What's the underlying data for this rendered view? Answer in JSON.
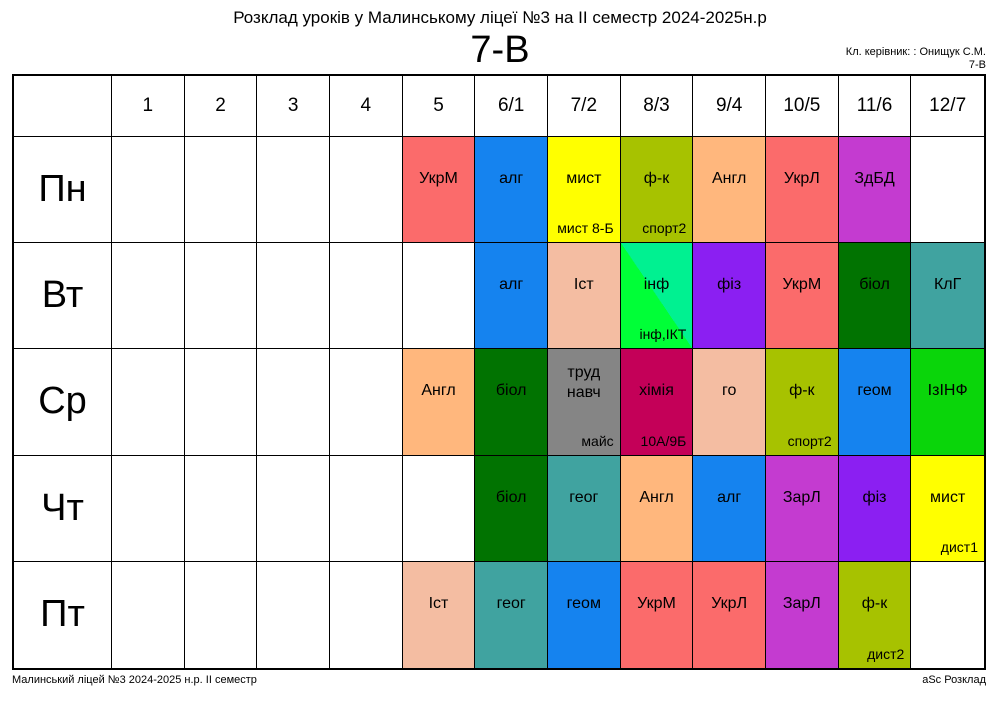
{
  "title": "Розклад уроків у Малинському ліцеї №3 на ІІ семестр 2024-2025н.р",
  "class_name": "7-В",
  "teacher_line1": "Кл. керівник: : Онищук С.М.",
  "teacher_line2": "7-В",
  "periods": [
    "1",
    "2",
    "3",
    "4",
    "5",
    "6/1",
    "7/2",
    "8/3",
    "9/4",
    "10/5",
    "11/6",
    "12/7"
  ],
  "days": [
    {
      "name": "Пн",
      "lessons": [
        null,
        null,
        null,
        null,
        {
          "subject": "УкрМ",
          "color": "#fb6b6b"
        },
        {
          "subject": "алг",
          "color": "#1583ef"
        },
        {
          "subject": "мист",
          "note": "мист 8-Б",
          "color": "#ffff00"
        },
        {
          "subject": "ф-к",
          "note": "спорт2",
          "color": "#a7c200"
        },
        {
          "subject": "Англ",
          "color": "#ffb77d"
        },
        {
          "subject": "УкрЛ",
          "color": "#fb6b6b"
        },
        {
          "subject": "ЗдБД",
          "color": "#c43bd0"
        },
        null
      ]
    },
    {
      "name": "Вт",
      "lessons": [
        null,
        null,
        null,
        null,
        null,
        {
          "subject": "алг",
          "color": "#1583ef"
        },
        {
          "subject": "Іст",
          "color": "#f4bda2"
        },
        {
          "subject": "інф",
          "note": "інф,ІКТ",
          "color": "#00ff37",
          "color2": "#00f191"
        },
        {
          "subject": "фіз",
          "color": "#8b1ff2"
        },
        {
          "subject": "УкрМ",
          "color": "#fb6b6b"
        },
        {
          "subject": "біол",
          "color": "#017301"
        },
        {
          "subject": "КлГ",
          "color": "#40a3a0"
        }
      ]
    },
    {
      "name": "Ср",
      "lessons": [
        null,
        null,
        null,
        null,
        {
          "subject": "Англ",
          "color": "#ffb77d"
        },
        {
          "subject": "біол",
          "color": "#017301"
        },
        {
          "subject": "труд навч",
          "note": "майс",
          "color": "#858585",
          "multi": true
        },
        {
          "subject": "хімія",
          "note": "10А/9Б",
          "color": "#c40058"
        },
        {
          "subject": "го",
          "color": "#f4bda2"
        },
        {
          "subject": "ф-к",
          "note": "спорт2",
          "color": "#a7c200"
        },
        {
          "subject": "геом",
          "color": "#1583ef"
        },
        {
          "subject": "ІзІНФ",
          "color": "#0ad50a"
        }
      ]
    },
    {
      "name": "Чт",
      "lessons": [
        null,
        null,
        null,
        null,
        null,
        {
          "subject": "біол",
          "color": "#017301"
        },
        {
          "subject": "геог",
          "color": "#40a3a0"
        },
        {
          "subject": "Англ",
          "color": "#ffb77d"
        },
        {
          "subject": "алг",
          "color": "#1583ef"
        },
        {
          "subject": "ЗарЛ",
          "color": "#c43bd0"
        },
        {
          "subject": "фіз",
          "color": "#8b1ff2"
        },
        {
          "subject": "мист",
          "note": "дист1",
          "color": "#ffff00"
        }
      ]
    },
    {
      "name": "Пт",
      "lessons": [
        null,
        null,
        null,
        null,
        {
          "subject": "Іст",
          "color": "#f4bda2"
        },
        {
          "subject": "геог",
          "color": "#40a3a0"
        },
        {
          "subject": "геом",
          "color": "#1583ef"
        },
        {
          "subject": "УкрМ",
          "color": "#fb6b6b"
        },
        {
          "subject": "УкрЛ",
          "color": "#fb6b6b"
        },
        {
          "subject": "ЗарЛ",
          "color": "#c43bd0"
        },
        {
          "subject": "ф-к",
          "note": "дист2",
          "color": "#a7c200"
        },
        null
      ]
    }
  ],
  "footer_left": "Малинський ліцей №3  2024-2025 н.р. ІІ семестр",
  "footer_right": "aSc Розклад"
}
